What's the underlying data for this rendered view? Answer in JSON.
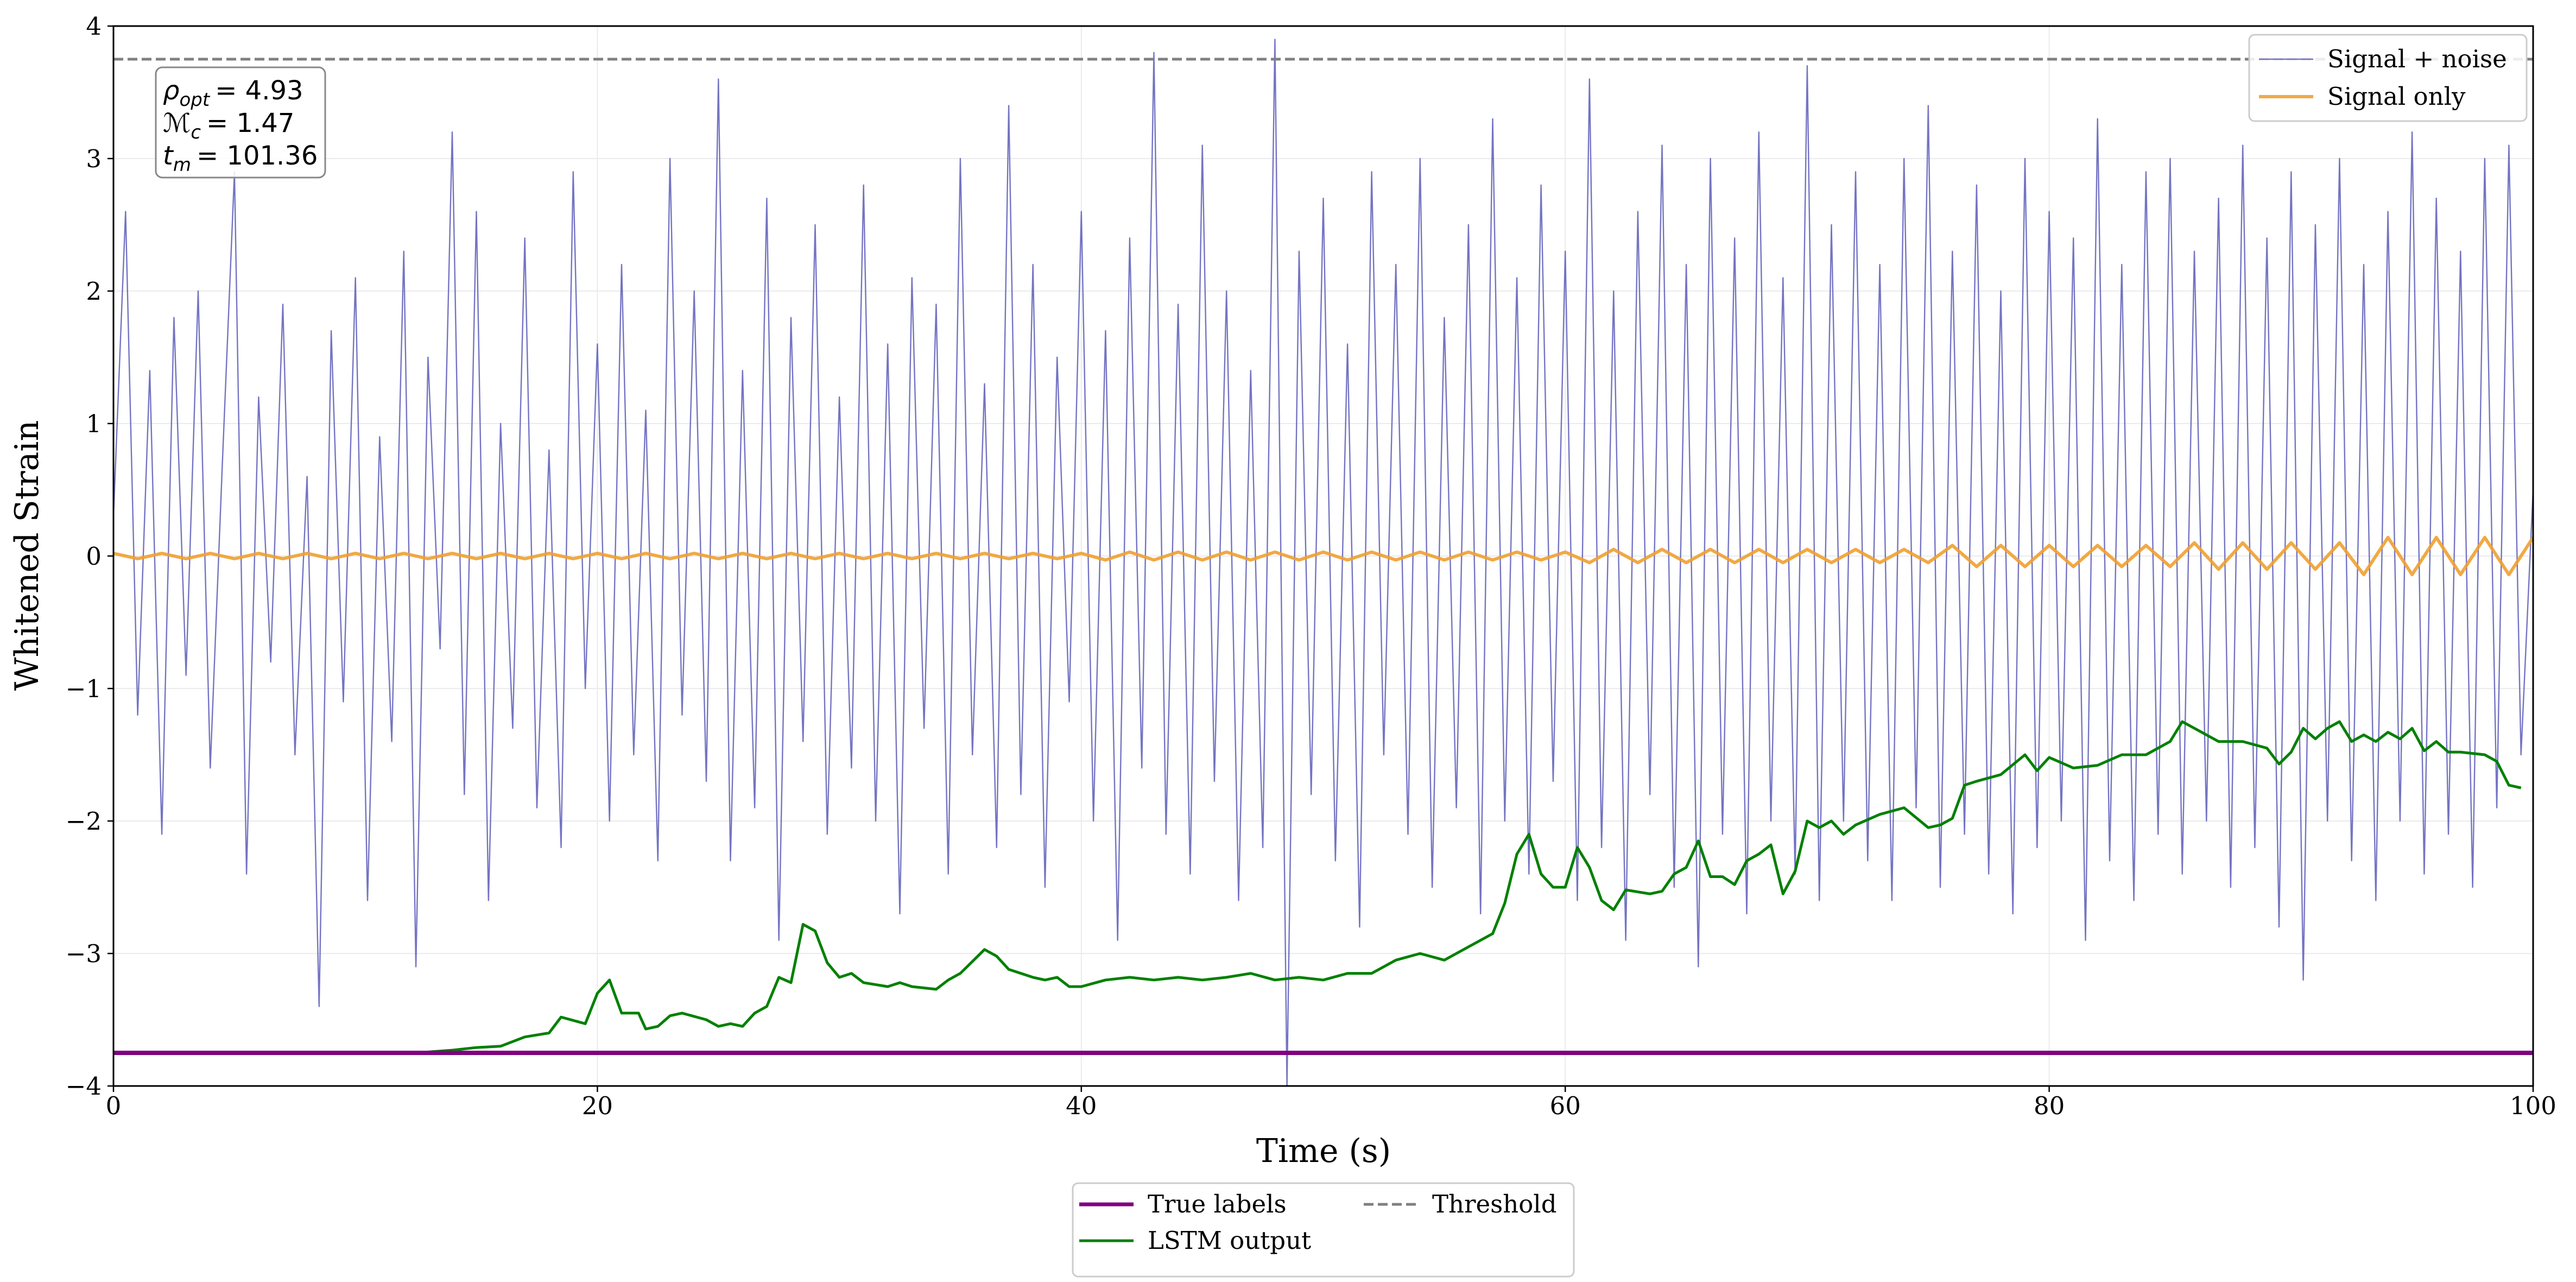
{
  "chart_data": {
    "type": "line",
    "xlabel": "Time (s)",
    "ylabel": "Whitened Strain",
    "xlim": [
      0,
      100
    ],
    "ylim": [
      -4,
      4
    ],
    "xticks": [
      0,
      20,
      40,
      60,
      80,
      100
    ],
    "yticks": [
      {
        "value": -4,
        "label": "−4"
      },
      {
        "value": -3,
        "label": "−3"
      },
      {
        "value": -2,
        "label": "−2"
      },
      {
        "value": -1,
        "label": "−1"
      },
      0,
      1,
      2,
      3,
      4
    ],
    "grid": true,
    "series": [
      {
        "name": "Signal + noise",
        "color": "#5c5cb8",
        "opacity": 0.85,
        "width": 2.4,
        "legend_loc": "upper right",
        "x": [
          0,
          0.5,
          1,
          1.5,
          2,
          2.5,
          3,
          3.5,
          4,
          4.5,
          5,
          5.5,
          6,
          6.5,
          7,
          7.5,
          8,
          8.5,
          9,
          9.5,
          10,
          10.5,
          11,
          11.5,
          12,
          12.5,
          13,
          13.5,
          14,
          14.5,
          15,
          15.5,
          16,
          16.5,
          17,
          17.5,
          18,
          18.5,
          19,
          19.5,
          20,
          20.5,
          21,
          21.5,
          22,
          22.5,
          23,
          23.5,
          24,
          24.5,
          25,
          25.5,
          26,
          26.5,
          27,
          27.5,
          28,
          28.5,
          29,
          29.5,
          30,
          30.5,
          31,
          31.5,
          32,
          32.5,
          33,
          33.5,
          34,
          34.5,
          35,
          35.5,
          36,
          36.5,
          37,
          37.5,
          38,
          38.5,
          39,
          39.5,
          40,
          40.5,
          41,
          41.5,
          42,
          42.5,
          43,
          43.5,
          44,
          44.5,
          45,
          45.5,
          46,
          46.5,
          47,
          47.5,
          48,
          48.5,
          49,
          49.5,
          50,
          50.5,
          51,
          51.5,
          52,
          52.5,
          53,
          53.5,
          54,
          54.5,
          55,
          55.5,
          56,
          56.5,
          57,
          57.5,
          58,
          58.5,
          59,
          59.5,
          60,
          60.5,
          61,
          61.5,
          62,
          62.5,
          63,
          63.5,
          64,
          64.5,
          65,
          65.5,
          66,
          66.5,
          67,
          67.5,
          68,
          68.5,
          69,
          69.5,
          70,
          70.5,
          71,
          71.5,
          72,
          72.5,
          73,
          73.5,
          74,
          74.5,
          75,
          75.5,
          76,
          76.5,
          77,
          77.5,
          78,
          78.5,
          79,
          79.5,
          80,
          80.5,
          81,
          81.5,
          82,
          82.5,
          83,
          83.5,
          84,
          84.5,
          85,
          85.5,
          86,
          86.5,
          87,
          87.5,
          88,
          88.5,
          89,
          89.5,
          90,
          90.5,
          91,
          91.5,
          92,
          92.5,
          93,
          93.5,
          94,
          94.5,
          95,
          95.5,
          96,
          96.5,
          97,
          97.5,
          98,
          98.5,
          99,
          99.5,
          100
        ],
        "values": [
          0.3,
          2.6,
          -1.2,
          1.4,
          -2.1,
          1.8,
          -0.9,
          2.0,
          -1.6,
          0.7,
          2.9,
          -2.4,
          1.2,
          -0.8,
          1.9,
          -1.5,
          0.6,
          -3.4,
          1.7,
          -1.1,
          2.1,
          -2.6,
          0.9,
          -1.4,
          2.3,
          -3.1,
          1.5,
          -0.7,
          3.2,
          -1.8,
          2.6,
          -2.6,
          1.0,
          -1.3,
          2.4,
          -1.9,
          0.8,
          -2.2,
          2.9,
          -1.0,
          1.6,
          -2.0,
          2.2,
          -1.5,
          1.1,
          -2.3,
          3.0,
          -1.2,
          2.0,
          -1.7,
          3.6,
          -2.3,
          1.4,
          -1.9,
          2.7,
          -2.9,
          1.8,
          -1.4,
          2.5,
          -2.1,
          1.2,
          -1.6,
          2.8,
          -2.0,
          1.6,
          -2.7,
          2.1,
          -1.3,
          1.9,
          -2.4,
          3.0,
          -1.5,
          1.3,
          -2.2,
          3.4,
          -1.8,
          2.2,
          -2.5,
          1.5,
          -1.1,
          2.6,
          -2.0,
          1.7,
          -2.9,
          2.4,
          -1.6,
          3.8,
          -2.1,
          1.9,
          -2.4,
          3.1,
          -1.7,
          2.0,
          -2.6,
          1.4,
          -2.2,
          3.9,
          -4.0,
          2.3,
          -1.8,
          2.7,
          -2.3,
          1.6,
          -2.8,
          2.9,
          -1.5,
          2.2,
          -2.1,
          3.0,
          -2.5,
          1.8,
          -1.9,
          2.5,
          -2.7,
          3.3,
          -2.0,
          2.1,
          -2.4,
          2.8,
          -1.7,
          2.3,
          -2.6,
          3.6,
          -2.2,
          2.0,
          -2.9,
          2.6,
          -1.8,
          3.1,
          -2.5,
          2.2,
          -3.1,
          3.0,
          -2.1,
          2.4,
          -2.7,
          3.2,
          -2.0,
          2.1,
          -2.4,
          3.7,
          -2.6,
          2.5,
          -2.0,
          2.9,
          -2.3,
          2.2,
          -2.6,
          3.0,
          -1.9,
          3.4,
          -2.5,
          2.3,
          -2.1,
          2.8,
          -2.4,
          2.0,
          -2.7,
          3.0,
          -2.2,
          2.6,
          -2.0,
          2.4,
          -2.9,
          3.3,
          -2.3,
          2.2,
          -2.6,
          2.9,
          -2.1,
          3.0,
          -2.4,
          2.3,
          -2.0,
          2.7,
          -2.5,
          3.1,
          -2.2,
          2.4,
          -2.8,
          2.9,
          -3.2,
          2.5,
          -2.0,
          3.0,
          -2.3,
          2.2,
          -2.6,
          2.6,
          -2.0,
          3.2,
          -2.4,
          2.7,
          -2.1,
          2.3,
          -2.5,
          3.0,
          -1.9,
          3.1,
          -1.5,
          0.5
        ]
      },
      {
        "name": "Signal only",
        "color": "#f0a030",
        "opacity": 0.9,
        "width": 6,
        "legend_loc": "upper right",
        "x": [
          0,
          1,
          2,
          3,
          4,
          5,
          6,
          7,
          8,
          9,
          10,
          11,
          12,
          13,
          14,
          15,
          16,
          17,
          18,
          19,
          20,
          21,
          22,
          23,
          24,
          25,
          26,
          27,
          28,
          29,
          30,
          31,
          32,
          33,
          34,
          35,
          36,
          37,
          38,
          39,
          40,
          41,
          42,
          43,
          44,
          45,
          46,
          47,
          48,
          49,
          50,
          51,
          52,
          53,
          54,
          55,
          56,
          57,
          58,
          59,
          60,
          61,
          62,
          63,
          64,
          65,
          66,
          67,
          68,
          69,
          70,
          71,
          72,
          73,
          74,
          75,
          76,
          77,
          78,
          79,
          80,
          81,
          82,
          83,
          84,
          85,
          86,
          87,
          88,
          89,
          90,
          91,
          92,
          93,
          94,
          95,
          96,
          97,
          98,
          99,
          100
        ],
        "values": [
          0.02,
          -0.02,
          0.02,
          -0.02,
          0.02,
          -0.02,
          0.02,
          -0.02,
          0.02,
          -0.02,
          0.02,
          -0.02,
          0.02,
          -0.02,
          0.02,
          -0.02,
          0.02,
          -0.02,
          0.02,
          -0.02,
          0.02,
          -0.02,
          0.02,
          -0.02,
          0.02,
          -0.02,
          0.02,
          -0.02,
          0.02,
          -0.02,
          0.02,
          -0.02,
          0.02,
          -0.02,
          0.02,
          -0.02,
          0.02,
          -0.02,
          0.02,
          -0.02,
          0.02,
          -0.03,
          0.03,
          -0.03,
          0.03,
          -0.03,
          0.03,
          -0.03,
          0.03,
          -0.03,
          0.03,
          -0.03,
          0.03,
          -0.03,
          0.03,
          -0.03,
          0.03,
          -0.03,
          0.03,
          -0.03,
          0.03,
          -0.05,
          0.05,
          -0.05,
          0.05,
          -0.05,
          0.05,
          -0.05,
          0.05,
          -0.05,
          0.05,
          -0.05,
          0.05,
          -0.05,
          0.05,
          -0.05,
          0.08,
          -0.08,
          0.08,
          -0.08,
          0.08,
          -0.08,
          0.08,
          -0.08,
          0.08,
          -0.08,
          0.1,
          -0.1,
          0.1,
          -0.1,
          0.1,
          -0.1,
          0.1,
          -0.14,
          0.14,
          -0.14,
          0.14,
          -0.14,
          0.14,
          -0.14,
          0.14
        ]
      },
      {
        "name": "LSTM output",
        "color": "#008000",
        "opacity": 1,
        "width": 5,
        "legend_loc": "lower center",
        "x": [
          0,
          5,
          10,
          12.5,
          14,
          15,
          16,
          17,
          18,
          18.5,
          19.5,
          20,
          20.5,
          21,
          21.7,
          22,
          22.5,
          23,
          23.5,
          24.5,
          25,
          25.5,
          26,
          26.5,
          27,
          27.5,
          28,
          28.5,
          29,
          29.5,
          30,
          30.5,
          31,
          32,
          32.5,
          33,
          34,
          34.5,
          35,
          36,
          36.5,
          37,
          38,
          38.5,
          39,
          39.5,
          40,
          41,
          42,
          43,
          44,
          45,
          46,
          47,
          48,
          49,
          50,
          51,
          52,
          53,
          54,
          55,
          56,
          57,
          57.5,
          58,
          58.5,
          59,
          59.5,
          60,
          60.5,
          61,
          61.5,
          62,
          62.5,
          63.5,
          64,
          64.5,
          65,
          65.5,
          66,
          66.5,
          67,
          67.5,
          68,
          68.5,
          69,
          69.5,
          70,
          70.5,
          71,
          71.5,
          72,
          73,
          74,
          75,
          75.5,
          76,
          76.5,
          77,
          78,
          79,
          79.5,
          80,
          81,
          82,
          83,
          84,
          85,
          85.5,
          86,
          87,
          88,
          89,
          89.5,
          90,
          90.5,
          91,
          91.5,
          92,
          92.5,
          93,
          93.5,
          94,
          94.5,
          95,
          95.5,
          96,
          96.5,
          97,
          98,
          98.5,
          99,
          99.5
        ],
        "values": [
          -3.75,
          -3.75,
          -3.75,
          -3.75,
          -3.73,
          -3.71,
          -3.7,
          -3.63,
          -3.6,
          -3.48,
          -3.53,
          -3.3,
          -3.2,
          -3.45,
          -3.45,
          -3.57,
          -3.55,
          -3.47,
          -3.45,
          -3.5,
          -3.55,
          -3.53,
          -3.55,
          -3.45,
          -3.4,
          -3.18,
          -3.22,
          -2.78,
          -2.83,
          -3.07,
          -3.18,
          -3.15,
          -3.22,
          -3.25,
          -3.22,
          -3.25,
          -3.27,
          -3.2,
          -3.15,
          -2.97,
          -3.02,
          -3.12,
          -3.18,
          -3.2,
          -3.18,
          -3.25,
          -3.25,
          -3.2,
          -3.18,
          -3.2,
          -3.18,
          -3.2,
          -3.18,
          -3.15,
          -3.2,
          -3.18,
          -3.2,
          -3.15,
          -3.15,
          -3.05,
          -3.0,
          -3.05,
          -2.95,
          -2.85,
          -2.62,
          -2.25,
          -2.1,
          -2.4,
          -2.5,
          -2.5,
          -2.2,
          -2.35,
          -2.6,
          -2.67,
          -2.52,
          -2.55,
          -2.53,
          -2.4,
          -2.35,
          -2.15,
          -2.42,
          -2.42,
          -2.48,
          -2.3,
          -2.25,
          -2.18,
          -2.55,
          -2.38,
          -2.0,
          -2.05,
          -2.0,
          -2.1,
          -2.03,
          -1.95,
          -1.9,
          -2.05,
          -2.03,
          -1.98,
          -1.73,
          -1.7,
          -1.65,
          -1.5,
          -1.62,
          -1.52,
          -1.6,
          -1.58,
          -1.5,
          -1.5,
          -1.4,
          -1.25,
          -1.3,
          -1.4,
          -1.4,
          -1.45,
          -1.57,
          -1.48,
          -1.3,
          -1.38,
          -1.3,
          -1.25,
          -1.4,
          -1.35,
          -1.4,
          -1.33,
          -1.38,
          -1.3,
          -1.47,
          -1.4,
          -1.48,
          -1.48,
          -1.5,
          -1.55,
          -1.73,
          -1.75
        ]
      },
      {
        "name": "True labels",
        "color": "#800080",
        "opacity": 1,
        "width": 8,
        "legend_loc": "lower center",
        "x": [
          0,
          100
        ],
        "values": [
          -3.75,
          -3.75
        ]
      }
    ],
    "threshold": {
      "name": "Threshold",
      "value": 3.75,
      "color": "#808080",
      "dashed": true,
      "legend_loc": "lower center"
    },
    "annotation": [
      {
        "symbol": "ρ",
        "sub": "opt",
        "text": "= 4.93"
      },
      {
        "symbol": "ℳ",
        "sub": "c",
        "text": "= 1.47"
      },
      {
        "symbol": "t",
        "sub": "m",
        "text": "= 101.36"
      }
    ]
  }
}
